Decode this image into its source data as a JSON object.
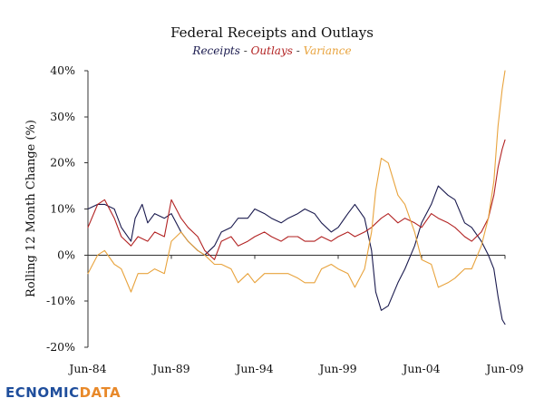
{
  "brand": {
    "prefix": "EC",
    "middle": "NOMIC",
    "suffix": "DATA",
    "prefix_color": "#1f4e9c",
    "middle_color": "#1f4e9c",
    "suffix_color": "#e8892a"
  },
  "chart_data": {
    "type": "line",
    "title": "Federal Receipts and Outlays",
    "subtitle_parts": [
      {
        "text": "Receipts",
        "color": "#1a1a4e"
      },
      {
        "text": " - ",
        "color": "#333333"
      },
      {
        "text": "Outlays",
        "color": "#b22222"
      },
      {
        "text": " - ",
        "color": "#333333"
      },
      {
        "text": "Variance",
        "color": "#e8a33d"
      }
    ],
    "xlabel": "",
    "ylabel": "Rolling 12 Month Change (%)",
    "ylim": [
      -20,
      40
    ],
    "xlim": [
      "1984-06",
      "2009-06"
    ],
    "grid": false,
    "y_ticks": [
      {
        "value": -20,
        "label": "-20%"
      },
      {
        "value": -10,
        "label": "-10%"
      },
      {
        "value": 0,
        "label": "0%"
      },
      {
        "value": 10,
        "label": "10%"
      },
      {
        "value": 20,
        "label": "20%"
      },
      {
        "value": 30,
        "label": "30%"
      },
      {
        "value": 40,
        "label": "40%"
      }
    ],
    "x_ticks": [
      {
        "value": "1984-06",
        "label": "Jun-84"
      },
      {
        "value": "1989-06",
        "label": "Jun-89"
      },
      {
        "value": "1994-06",
        "label": "Jun-94"
      },
      {
        "value": "1999-06",
        "label": "Jun-99"
      },
      {
        "value": "2004-06",
        "label": "Jun-04"
      },
      {
        "value": "2009-06",
        "label": "Jun-09"
      }
    ],
    "series": [
      {
        "name": "Receipts",
        "color": "#1a1a4e",
        "points": [
          [
            "1984-06",
            10
          ],
          [
            "1985-01",
            11
          ],
          [
            "1985-06",
            11
          ],
          [
            "1986-01",
            10
          ],
          [
            "1986-06",
            6
          ],
          [
            "1987-01",
            3
          ],
          [
            "1987-04",
            8
          ],
          [
            "1987-09",
            11
          ],
          [
            "1988-01",
            7
          ],
          [
            "1988-06",
            9
          ],
          [
            "1989-01",
            8
          ],
          [
            "1989-06",
            9
          ],
          [
            "1990-01",
            5
          ],
          [
            "1990-06",
            3
          ],
          [
            "1991-01",
            1
          ],
          [
            "1991-06",
            0
          ],
          [
            "1992-01",
            2
          ],
          [
            "1992-06",
            5
          ],
          [
            "1993-01",
            6
          ],
          [
            "1993-06",
            8
          ],
          [
            "1994-01",
            8
          ],
          [
            "1994-06",
            10
          ],
          [
            "1995-01",
            9
          ],
          [
            "1995-06",
            8
          ],
          [
            "1996-01",
            7
          ],
          [
            "1996-06",
            8
          ],
          [
            "1997-01",
            9
          ],
          [
            "1997-06",
            10
          ],
          [
            "1998-01",
            9
          ],
          [
            "1998-06",
            7
          ],
          [
            "1999-01",
            5
          ],
          [
            "1999-06",
            6
          ],
          [
            "2000-01",
            9
          ],
          [
            "2000-06",
            11
          ],
          [
            "2001-01",
            8
          ],
          [
            "2001-06",
            1
          ],
          [
            "2001-09",
            -8
          ],
          [
            "2002-01",
            -12
          ],
          [
            "2002-06",
            -11
          ],
          [
            "2003-01",
            -6
          ],
          [
            "2003-06",
            -3
          ],
          [
            "2004-01",
            2
          ],
          [
            "2004-06",
            7
          ],
          [
            "2005-01",
            11
          ],
          [
            "2005-06",
            15
          ],
          [
            "2006-01",
            13
          ],
          [
            "2006-06",
            12
          ],
          [
            "2007-01",
            7
          ],
          [
            "2007-06",
            6
          ],
          [
            "2008-01",
            3
          ],
          [
            "2008-06",
            0
          ],
          [
            "2008-10",
            -3
          ],
          [
            "2009-01",
            -9
          ],
          [
            "2009-04",
            -14
          ],
          [
            "2009-06",
            -15
          ]
        ]
      },
      {
        "name": "Outlays",
        "color": "#b22222",
        "points": [
          [
            "1984-06",
            6
          ],
          [
            "1985-01",
            11
          ],
          [
            "1985-06",
            12
          ],
          [
            "1986-01",
            8
          ],
          [
            "1986-06",
            4
          ],
          [
            "1987-01",
            2
          ],
          [
            "1987-06",
            4
          ],
          [
            "1988-01",
            3
          ],
          [
            "1988-06",
            5
          ],
          [
            "1989-01",
            4
          ],
          [
            "1989-06",
            12
          ],
          [
            "1990-01",
            8
          ],
          [
            "1990-06",
            6
          ],
          [
            "1991-01",
            4
          ],
          [
            "1991-06",
            1
          ],
          [
            "1992-01",
            -1
          ],
          [
            "1992-06",
            3
          ],
          [
            "1993-01",
            4
          ],
          [
            "1993-06",
            2
          ],
          [
            "1994-01",
            3
          ],
          [
            "1994-06",
            4
          ],
          [
            "1995-01",
            5
          ],
          [
            "1995-06",
            4
          ],
          [
            "1996-01",
            3
          ],
          [
            "1996-06",
            4
          ],
          [
            "1997-01",
            4
          ],
          [
            "1997-06",
            3
          ],
          [
            "1998-01",
            3
          ],
          [
            "1998-06",
            4
          ],
          [
            "1999-01",
            3
          ],
          [
            "1999-06",
            4
          ],
          [
            "2000-01",
            5
          ],
          [
            "2000-06",
            4
          ],
          [
            "2001-01",
            5
          ],
          [
            "2001-06",
            6
          ],
          [
            "2002-01",
            8
          ],
          [
            "2002-06",
            9
          ],
          [
            "2003-01",
            7
          ],
          [
            "2003-06",
            8
          ],
          [
            "2004-01",
            7
          ],
          [
            "2004-06",
            6
          ],
          [
            "2005-01",
            9
          ],
          [
            "2005-06",
            8
          ],
          [
            "2006-01",
            7
          ],
          [
            "2006-06",
            6
          ],
          [
            "2007-01",
            4
          ],
          [
            "2007-06",
            3
          ],
          [
            "2008-01",
            5
          ],
          [
            "2008-06",
            8
          ],
          [
            "2008-10",
            13
          ],
          [
            "2009-01",
            19
          ],
          [
            "2009-04",
            23
          ],
          [
            "2009-06",
            25
          ]
        ]
      },
      {
        "name": "Variance",
        "color": "#e8a33d",
        "points": [
          [
            "1984-06",
            -4
          ],
          [
            "1985-01",
            0
          ],
          [
            "1985-06",
            1
          ],
          [
            "1986-01",
            -2
          ],
          [
            "1986-06",
            -3
          ],
          [
            "1987-01",
            -8
          ],
          [
            "1987-06",
            -4
          ],
          [
            "1988-01",
            -4
          ],
          [
            "1988-06",
            -3
          ],
          [
            "1989-01",
            -4
          ],
          [
            "1989-06",
            3
          ],
          [
            "1990-01",
            5
          ],
          [
            "1990-06",
            3
          ],
          [
            "1991-01",
            1
          ],
          [
            "1991-06",
            0
          ],
          [
            "1992-01",
            -2
          ],
          [
            "1992-06",
            -2
          ],
          [
            "1993-01",
            -3
          ],
          [
            "1993-06",
            -6
          ],
          [
            "1994-01",
            -4
          ],
          [
            "1994-06",
            -6
          ],
          [
            "1995-01",
            -4
          ],
          [
            "1995-06",
            -4
          ],
          [
            "1996-01",
            -4
          ],
          [
            "1996-06",
            -4
          ],
          [
            "1997-01",
            -5
          ],
          [
            "1997-06",
            -6
          ],
          [
            "1998-01",
            -6
          ],
          [
            "1998-06",
            -3
          ],
          [
            "1999-01",
            -2
          ],
          [
            "1999-06",
            -3
          ],
          [
            "2000-01",
            -4
          ],
          [
            "2000-06",
            -7
          ],
          [
            "2001-01",
            -3
          ],
          [
            "2001-06",
            5
          ],
          [
            "2001-09",
            14
          ],
          [
            "2002-01",
            21
          ],
          [
            "2002-06",
            20
          ],
          [
            "2003-01",
            13
          ],
          [
            "2003-06",
            11
          ],
          [
            "2004-01",
            5
          ],
          [
            "2004-06",
            -1
          ],
          [
            "2005-01",
            -2
          ],
          [
            "2005-06",
            -7
          ],
          [
            "2006-01",
            -6
          ],
          [
            "2006-06",
            -5
          ],
          [
            "2007-01",
            -3
          ],
          [
            "2007-06",
            -3
          ],
          [
            "2008-01",
            2
          ],
          [
            "2008-06",
            8
          ],
          [
            "2008-10",
            16
          ],
          [
            "2009-01",
            28
          ],
          [
            "2009-04",
            36
          ],
          [
            "2009-06",
            40
          ]
        ]
      }
    ]
  }
}
